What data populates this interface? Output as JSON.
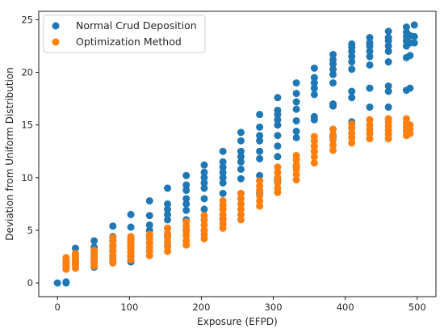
{
  "chart_data": {
    "type": "scatter",
    "title": "",
    "xlabel": "Exposure (EFPD)",
    "ylabel": "Deviation from Uniform Distribution",
    "xlim": [
      -26,
      526
    ],
    "ylim": [
      -1.3,
      25.8
    ],
    "xticks": [
      0,
      100,
      200,
      300,
      400,
      500
    ],
    "yticks": [
      0,
      5,
      10,
      15,
      20,
      25
    ],
    "grid": false,
    "legend_position": "top-left",
    "series": [
      {
        "name": "Normal Crud Deposition",
        "color": "#1f77b4",
        "points": [
          [
            0,
            0
          ],
          [
            12,
            0
          ],
          [
            12,
            0.1
          ],
          [
            12,
            1.6
          ],
          [
            12,
            1.9
          ],
          [
            25,
            1.9
          ],
          [
            25,
            2.3
          ],
          [
            25,
            2.6
          ],
          [
            25,
            3.3
          ],
          [
            25,
            2.0
          ],
          [
            51,
            1.5
          ],
          [
            51,
            2.0
          ],
          [
            51,
            2.4
          ],
          [
            51,
            2.8
          ],
          [
            51,
            3.1
          ],
          [
            51,
            3.4
          ],
          [
            51,
            4.0
          ],
          [
            77,
            2.0
          ],
          [
            77,
            2.6
          ],
          [
            77,
            3.0
          ],
          [
            77,
            3.5
          ],
          [
            77,
            4.0
          ],
          [
            77,
            4.4
          ],
          [
            77,
            5.4
          ],
          [
            102,
            2.0
          ],
          [
            102,
            2.5
          ],
          [
            102,
            3.0
          ],
          [
            102,
            3.5
          ],
          [
            102,
            3.9
          ],
          [
            102,
            4.2
          ],
          [
            102,
            5.3
          ],
          [
            102,
            6.5
          ],
          [
            128,
            3.0
          ],
          [
            128,
            3.8
          ],
          [
            128,
            4.5
          ],
          [
            128,
            5.0
          ],
          [
            128,
            5.5
          ],
          [
            128,
            6.4
          ],
          [
            128,
            7.8
          ],
          [
            153,
            3.5
          ],
          [
            153,
            4.5
          ],
          [
            153,
            5.2
          ],
          [
            153,
            6.0
          ],
          [
            153,
            6.5
          ],
          [
            153,
            7.0
          ],
          [
            153,
            7.5
          ],
          [
            153,
            9.0
          ],
          [
            179,
            4.0
          ],
          [
            179,
            5.0
          ],
          [
            179,
            6.0
          ],
          [
            179,
            6.9
          ],
          [
            179,
            7.5
          ],
          [
            179,
            8.0
          ],
          [
            179,
            8.8
          ],
          [
            179,
            9.3
          ],
          [
            179,
            10.2
          ],
          [
            204,
            5.0
          ],
          [
            204,
            6.0
          ],
          [
            204,
            7.0
          ],
          [
            204,
            8.0
          ],
          [
            204,
            9.0
          ],
          [
            204,
            9.5
          ],
          [
            204,
            10.0
          ],
          [
            204,
            10.5
          ],
          [
            204,
            11.2
          ],
          [
            230,
            6.0
          ],
          [
            230,
            7.0
          ],
          [
            230,
            8.5
          ],
          [
            230,
            9.5
          ],
          [
            230,
            10.0
          ],
          [
            230,
            10.5
          ],
          [
            230,
            11.0
          ],
          [
            230,
            11.5
          ],
          [
            230,
            12.5
          ],
          [
            255,
            7.0
          ],
          [
            255,
            8.5
          ],
          [
            255,
            9.9
          ],
          [
            255,
            10.8
          ],
          [
            255,
            11.5
          ],
          [
            255,
            12.0
          ],
          [
            255,
            12.5
          ],
          [
            255,
            13.5
          ],
          [
            255,
            14.3
          ],
          [
            281,
            8.5
          ],
          [
            281,
            10.2
          ],
          [
            281,
            11.8
          ],
          [
            281,
            12.5
          ],
          [
            281,
            13.5
          ],
          [
            281,
            14.0
          ],
          [
            281,
            14.8
          ],
          [
            281,
            16.0
          ],
          [
            306,
            9.7
          ],
          [
            306,
            12.0
          ],
          [
            306,
            13.0
          ],
          [
            306,
            14.0
          ],
          [
            306,
            15.0
          ],
          [
            306,
            15.5
          ],
          [
            306,
            16.0
          ],
          [
            306,
            16.4
          ],
          [
            306,
            17.6
          ],
          [
            332,
            11.0
          ],
          [
            332,
            13.8
          ],
          [
            332,
            14.4
          ],
          [
            332,
            15.4
          ],
          [
            332,
            16.5
          ],
          [
            332,
            17.2
          ],
          [
            332,
            18.0
          ],
          [
            332,
            19.0
          ],
          [
            357,
            12.5
          ],
          [
            357,
            15.5
          ],
          [
            357,
            15.8
          ],
          [
            357,
            17.9
          ],
          [
            357,
            18.5
          ],
          [
            357,
            19.0
          ],
          [
            357,
            19.5
          ],
          [
            357,
            20.4
          ],
          [
            383,
            13.9
          ],
          [
            383,
            16.8
          ],
          [
            383,
            17.0
          ],
          [
            383,
            19.0
          ],
          [
            383,
            19.8
          ],
          [
            383,
            20.3
          ],
          [
            383,
            20.8
          ],
          [
            383,
            21.2
          ],
          [
            383,
            21.7
          ],
          [
            409,
            15.3
          ],
          [
            409,
            17.6
          ],
          [
            409,
            18.2
          ],
          [
            409,
            20.3
          ],
          [
            409,
            21.0
          ],
          [
            409,
            21.5
          ],
          [
            409,
            22.0
          ],
          [
            409,
            22.4
          ],
          [
            409,
            22.7
          ],
          [
            434,
            16.7
          ],
          [
            434,
            18.5
          ],
          [
            434,
            20.7
          ],
          [
            434,
            21.5
          ],
          [
            434,
            22.0
          ],
          [
            434,
            22.5
          ],
          [
            434,
            22.8
          ],
          [
            434,
            23.3
          ],
          [
            460,
            16.7
          ],
          [
            460,
            18.2
          ],
          [
            460,
            18.7
          ],
          [
            460,
            21.0
          ],
          [
            460,
            22.0
          ],
          [
            460,
            22.5
          ],
          [
            460,
            23.0
          ],
          [
            460,
            23.3
          ],
          [
            460,
            23.9
          ],
          [
            485,
            18.3
          ],
          [
            485,
            21.4
          ],
          [
            485,
            22.5
          ],
          [
            485,
            23.0
          ],
          [
            485,
            23.4
          ],
          [
            485,
            23.8
          ],
          [
            485,
            24.3
          ],
          [
            490,
            18.5
          ],
          [
            490,
            21.6
          ],
          [
            490,
            22.8
          ],
          [
            490,
            23.5
          ],
          [
            496,
            22.8
          ],
          [
            496,
            23.4
          ],
          [
            496,
            24.5
          ]
        ]
      },
      {
        "name": "Optimization Method",
        "color": "#ff7f0e",
        "points": [
          [
            12,
            1.3
          ],
          [
            12,
            1.6
          ],
          [
            12,
            1.8
          ],
          [
            12,
            2.0
          ],
          [
            12,
            2.2
          ],
          [
            12,
            2.4
          ],
          [
            25,
            1.4
          ],
          [
            25,
            1.7
          ],
          [
            25,
            2.0
          ],
          [
            25,
            2.3
          ],
          [
            25,
            2.6
          ],
          [
            25,
            2.8
          ],
          [
            51,
            1.6
          ],
          [
            51,
            1.9
          ],
          [
            51,
            2.2
          ],
          [
            51,
            2.5
          ],
          [
            51,
            2.8
          ],
          [
            51,
            3.1
          ],
          [
            77,
            1.9
          ],
          [
            77,
            2.3
          ],
          [
            77,
            2.6
          ],
          [
            77,
            3.0
          ],
          [
            77,
            3.3
          ],
          [
            77,
            3.6
          ],
          [
            77,
            4.0
          ],
          [
            77,
            4.3
          ],
          [
            102,
            2.2
          ],
          [
            102,
            2.6
          ],
          [
            102,
            2.9
          ],
          [
            102,
            3.3
          ],
          [
            102,
            3.6
          ],
          [
            102,
            4.0
          ],
          [
            102,
            4.4
          ],
          [
            128,
            2.6
          ],
          [
            128,
            3.0
          ],
          [
            128,
            3.4
          ],
          [
            128,
            3.8
          ],
          [
            128,
            4.2
          ],
          [
            128,
            4.6
          ],
          [
            153,
            3.0
          ],
          [
            153,
            3.4
          ],
          [
            153,
            3.9
          ],
          [
            153,
            4.3
          ],
          [
            153,
            4.7
          ],
          [
            153,
            5.2
          ],
          [
            179,
            3.6
          ],
          [
            179,
            4.0
          ],
          [
            179,
            4.5
          ],
          [
            179,
            4.9
          ],
          [
            179,
            5.4
          ],
          [
            179,
            5.8
          ],
          [
            204,
            4.2
          ],
          [
            204,
            4.6
          ],
          [
            204,
            5.0
          ],
          [
            204,
            5.5
          ],
          [
            204,
            6.0
          ],
          [
            204,
            6.4
          ],
          [
            230,
            5.2
          ],
          [
            230,
            5.6
          ],
          [
            230,
            6.1
          ],
          [
            230,
            6.5
          ],
          [
            230,
            7.0
          ],
          [
            230,
            7.4
          ],
          [
            230,
            7.8
          ],
          [
            255,
            6.0
          ],
          [
            255,
            6.5
          ],
          [
            255,
            7.0
          ],
          [
            255,
            7.5
          ],
          [
            255,
            8.0
          ],
          [
            255,
            8.5
          ],
          [
            281,
            7.3
          ],
          [
            281,
            7.8
          ],
          [
            281,
            8.3
          ],
          [
            281,
            8.8
          ],
          [
            281,
            9.2
          ],
          [
            281,
            9.7
          ],
          [
            306,
            8.6
          ],
          [
            306,
            9.0
          ],
          [
            306,
            9.5
          ],
          [
            306,
            10.0
          ],
          [
            306,
            10.5
          ],
          [
            306,
            11.0
          ],
          [
            332,
            9.8
          ],
          [
            332,
            10.3
          ],
          [
            332,
            10.8
          ],
          [
            332,
            11.2
          ],
          [
            332,
            11.7
          ],
          [
            332,
            12.1
          ],
          [
            357,
            11.4
          ],
          [
            357,
            12.0
          ],
          [
            357,
            12.5
          ],
          [
            357,
            13.0
          ],
          [
            357,
            13.5
          ],
          [
            357,
            13.9
          ],
          [
            383,
            12.6
          ],
          [
            383,
            13.1
          ],
          [
            383,
            13.6
          ],
          [
            383,
            14.1
          ],
          [
            383,
            14.6
          ],
          [
            409,
            13.3
          ],
          [
            409,
            13.8
          ],
          [
            409,
            14.2
          ],
          [
            409,
            14.7
          ],
          [
            409,
            15.1
          ],
          [
            434,
            13.7
          ],
          [
            434,
            14.2
          ],
          [
            434,
            14.6
          ],
          [
            434,
            15.0
          ],
          [
            434,
            15.5
          ],
          [
            460,
            13.7
          ],
          [
            460,
            14.1
          ],
          [
            460,
            14.5
          ],
          [
            460,
            14.9
          ],
          [
            460,
            15.3
          ],
          [
            460,
            15.6
          ],
          [
            485,
            14.0
          ],
          [
            485,
            14.4
          ],
          [
            485,
            14.8
          ],
          [
            485,
            15.2
          ],
          [
            485,
            15.6
          ],
          [
            490,
            14.2
          ],
          [
            490,
            14.6
          ],
          [
            490,
            15.0
          ]
        ]
      }
    ]
  }
}
